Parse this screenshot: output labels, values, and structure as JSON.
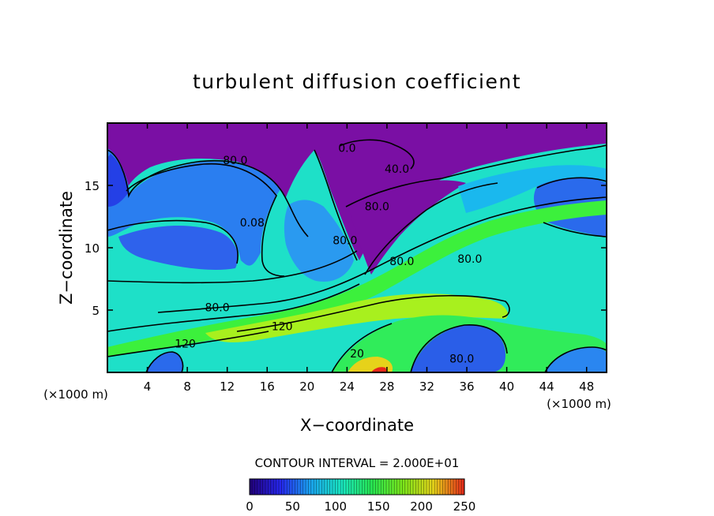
{
  "chart_data": {
    "type": "heatmap",
    "title": "turbulent diffusion coefficient",
    "xlabel": "X−coordinate",
    "ylabel": "Z−coordinate",
    "x_unit_left": "(×1000 m)",
    "x_unit_right": "(×1000 m)",
    "xlim": [
      0,
      50
    ],
    "ylim": [
      0,
      20
    ],
    "x_ticks": [
      4,
      8,
      12,
      16,
      20,
      24,
      28,
      32,
      36,
      40,
      44,
      48
    ],
    "y_ticks": [
      5,
      10,
      15
    ],
    "contour_interval_text": "CONTOUR INTERVAL = 2.000E+01",
    "contour_labels": [
      {
        "text": "80.0",
        "x": 12.8,
        "y": 16.7
      },
      {
        "text": "0.08",
        "x": 14.5,
        "y": 11.7
      },
      {
        "text": "80.0",
        "x": 11.0,
        "y": 4.9
      },
      {
        "text": "120",
        "x": 17.5,
        "y": 3.4
      },
      {
        "text": "120",
        "x": 7.8,
        "y": 2.0
      },
      {
        "text": "0.0",
        "x": 24.0,
        "y": 17.7
      },
      {
        "text": "40.0",
        "x": 29.0,
        "y": 16.0
      },
      {
        "text": "80.0",
        "x": 27.0,
        "y": 13.0
      },
      {
        "text": "80.0",
        "x": 23.8,
        "y": 10.3
      },
      {
        "text": "80.0",
        "x": 29.5,
        "y": 8.6
      },
      {
        "text": "80.0",
        "x": 36.3,
        "y": 8.8
      },
      {
        "text": "20",
        "x": 25.0,
        "y": 1.2
      },
      {
        "text": "80.0",
        "x": 35.5,
        "y": 0.8
      }
    ],
    "colorbar": {
      "min": 0,
      "max": 250,
      "ticks": [
        0,
        50,
        100,
        150,
        200,
        250
      ],
      "colors": [
        "#22007a",
        "#2626ee",
        "#1aa6f0",
        "#19e6c0",
        "#28e650",
        "#7ce61a",
        "#e6d21a",
        "#e6281a"
      ]
    },
    "field_colors": {
      "top_purple": "#7a0fa4",
      "deep_blue": "#2a40e8",
      "mid_blue": "#2a8ef2",
      "cyan": "#18cfe8",
      "teal": "#1ee8b4",
      "green": "#34f046",
      "yellow_green": "#a8f01e"
    }
  }
}
